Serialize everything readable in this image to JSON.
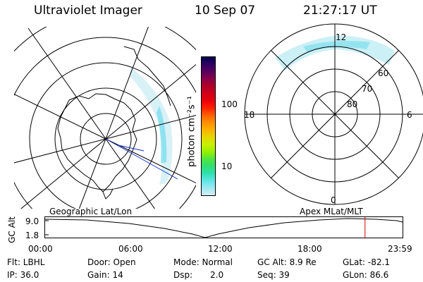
{
  "header": {
    "instrument": "Ultraviolet Imager",
    "date": "10 Sep 07",
    "time": "21:27:17 UT"
  },
  "colorbar": {
    "unit": "photon cm⁻²s⁻¹",
    "tick_labels": [
      "100",
      "10"
    ],
    "scale": "log",
    "colors": [
      "#000050",
      "#300060",
      "#5a0060",
      "#8a004a",
      "#b00028",
      "#d0001a",
      "#e8000a",
      "#ff2000",
      "#ff6000",
      "#ff9000",
      "#ffb000",
      "#e6d600",
      "#c8f000",
      "#98f000",
      "#50e640",
      "#30e070",
      "#30e0b0",
      "#60e6e6",
      "#9ee8f0",
      "#d6eef5"
    ]
  },
  "geo_map": {
    "label": "Geographic Lat/Lon"
  },
  "apex_map": {
    "label": "Apex MLat/MLT",
    "mlt_labels": {
      "top": "12",
      "left": "18",
      "right": "6",
      "bottom": "0"
    },
    "lat_labels": [
      "60",
      "70",
      "80"
    ]
  },
  "altitude_plot": {
    "ylabel": "GC Alt",
    "yticks": [
      "9.0",
      "1.8"
    ],
    "xticks": [
      "00:00",
      "06:00",
      "12:00",
      "18:00",
      "23:59"
    ],
    "current_time_fraction": 0.895
  },
  "info": {
    "filter": "Flt: LBHL",
    "ip": "IP: 36.0",
    "door": "Door: Open",
    "gain": "Gain: 14",
    "mode": "Mode: Normal",
    "dsp_label": "Dsp:",
    "dsp_value": "2.0",
    "gc_alt": "GC Alt: 8.9 Re",
    "seq": "Seq: 39",
    "glat": "GLat: -82.1",
    "glon": "GLon: 86.6"
  }
}
